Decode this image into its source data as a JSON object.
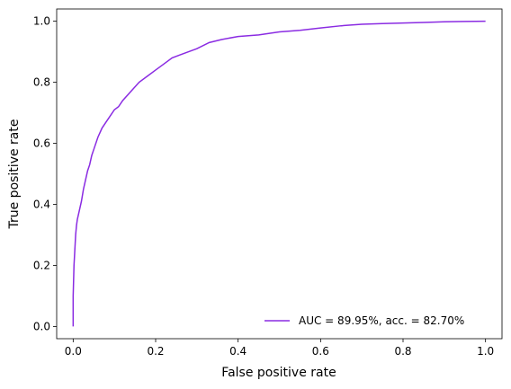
{
  "chart_data": {
    "type": "line",
    "title": "",
    "xlabel": "False positive rate",
    "ylabel": "True positive rate",
    "xlim": [
      -0.04,
      1.04
    ],
    "ylim": [
      -0.04,
      1.04
    ],
    "xticks": [
      0.0,
      0.2,
      0.4,
      0.6,
      0.8,
      1.0
    ],
    "yticks": [
      0.0,
      0.2,
      0.4,
      0.6,
      0.8,
      1.0
    ],
    "xtick_labels": [
      "0.0",
      "0.2",
      "0.4",
      "0.6",
      "0.8",
      "1.0"
    ],
    "ytick_labels": [
      "0.0",
      "0.2",
      "0.4",
      "0.6",
      "0.8",
      "1.0"
    ],
    "grid": false,
    "legend_position": "lower-right",
    "series": [
      {
        "name": "AUC = 89.95%, acc. = 82.70%",
        "color": "#8a2be2",
        "x": [
          0.0,
          0.0,
          0.002,
          0.004,
          0.006,
          0.008,
          0.01,
          0.015,
          0.02,
          0.025,
          0.03,
          0.035,
          0.04,
          0.045,
          0.05,
          0.06,
          0.07,
          0.08,
          0.09,
          0.1,
          0.11,
          0.12,
          0.14,
          0.16,
          0.18,
          0.2,
          0.22,
          0.24,
          0.26,
          0.28,
          0.3,
          0.33,
          0.36,
          0.4,
          0.45,
          0.5,
          0.55,
          0.6,
          0.65,
          0.7,
          0.75,
          0.8,
          0.85,
          0.9,
          0.95,
          1.0
        ],
        "y": [
          0.0,
          0.1,
          0.2,
          0.25,
          0.3,
          0.33,
          0.35,
          0.38,
          0.41,
          0.45,
          0.48,
          0.51,
          0.53,
          0.56,
          0.58,
          0.62,
          0.65,
          0.67,
          0.69,
          0.71,
          0.72,
          0.74,
          0.77,
          0.8,
          0.82,
          0.84,
          0.86,
          0.88,
          0.89,
          0.9,
          0.91,
          0.93,
          0.94,
          0.95,
          0.955,
          0.965,
          0.97,
          0.978,
          0.985,
          0.99,
          0.992,
          0.994,
          0.996,
          0.998,
          0.999,
          1.0
        ]
      }
    ]
  }
}
